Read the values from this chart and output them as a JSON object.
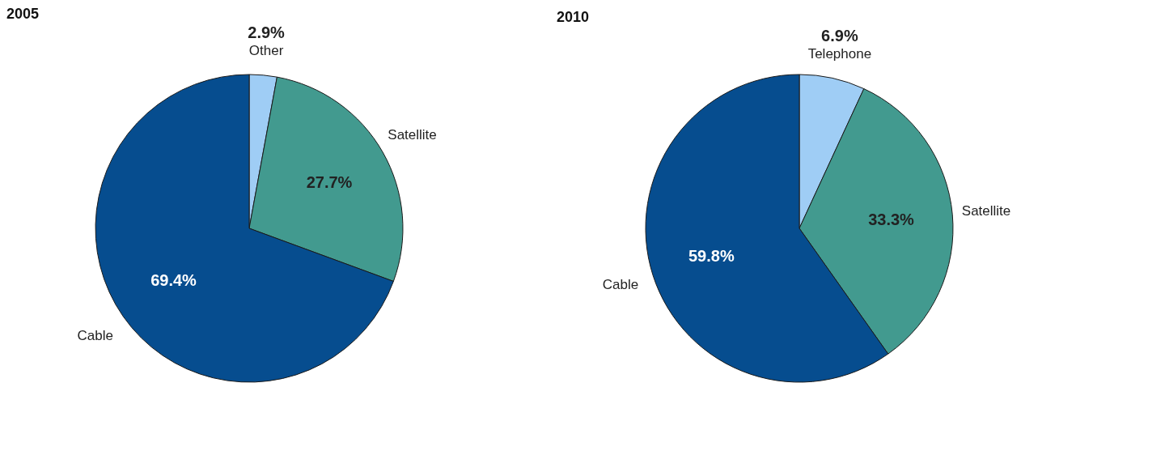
{
  "chart_data": [
    {
      "type": "pie",
      "title": "2005",
      "categories": [
        "Other",
        "Satellite",
        "Cable"
      ],
      "values": [
        2.9,
        27.7,
        69.4
      ],
      "colors": [
        "#9fcdf5",
        "#429a8f",
        "#064d8f"
      ],
      "value_labels": [
        "2.9%",
        "27.7%",
        "69.4%"
      ]
    },
    {
      "type": "pie",
      "title": "2010",
      "categories": [
        "Telephone",
        "Satellite",
        "Cable"
      ],
      "values": [
        6.9,
        33.3,
        59.8
      ],
      "colors": [
        "#9fcdf5",
        "#429a8f",
        "#064d8f"
      ],
      "value_labels": [
        "6.9%",
        "33.3%",
        "59.8%"
      ]
    }
  ]
}
